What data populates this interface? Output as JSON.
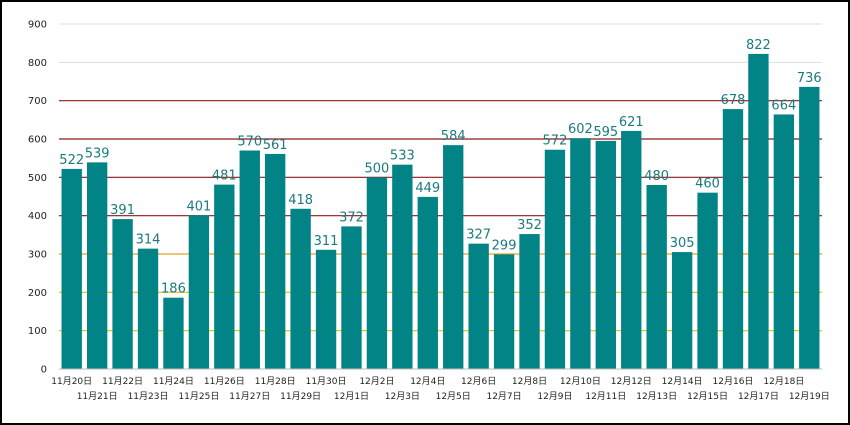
{
  "chart_data": {
    "type": "bar",
    "title": "",
    "xlabel": "",
    "ylabel": "",
    "ylim": [
      0,
      900
    ],
    "yticks": [
      0,
      100,
      200,
      300,
      400,
      500,
      600,
      700,
      800,
      900
    ],
    "grid": true,
    "legend": "none",
    "bar_color": "#028386",
    "label_color": "#1b7a80",
    "categories": [
      "11月20日",
      "11月21日",
      "11月22日",
      "11月23日",
      "11月24日",
      "11月25日",
      "11月26日",
      "11月27日",
      "11月28日",
      "11月29日",
      "11月30日",
      "12月1日",
      "12月2日",
      "12月3日",
      "12月4日",
      "12月5日",
      "12月6日",
      "12月7日",
      "12月8日",
      "12月9日",
      "12月10日",
      "12月11日",
      "12月12日",
      "12月13日",
      "12月14日",
      "12月15日",
      "12月16日",
      "12月17日",
      "12月18日",
      "12月19日"
    ],
    "values": [
      522,
      539,
      391,
      314,
      186,
      401,
      481,
      570,
      561,
      418,
      311,
      372,
      500,
      533,
      449,
      584,
      327,
      299,
      352,
      572,
      602,
      595,
      621,
      480,
      305,
      460,
      678,
      822,
      664,
      736
    ],
    "threshold_lines": [
      {
        "value": 100,
        "color": "#e0c000"
      },
      {
        "value": 200,
        "color": "#e0c000"
      },
      {
        "value": 300,
        "color": "#e6a020"
      },
      {
        "value": 400,
        "color": "#8b1a1a"
      },
      {
        "value": 500,
        "color": "#8b1a1a"
      },
      {
        "value": 600,
        "color": "#8b1a1a"
      },
      {
        "value": 700,
        "color": "#8b1a1a"
      }
    ],
    "grid_color": "#dddddd"
  }
}
